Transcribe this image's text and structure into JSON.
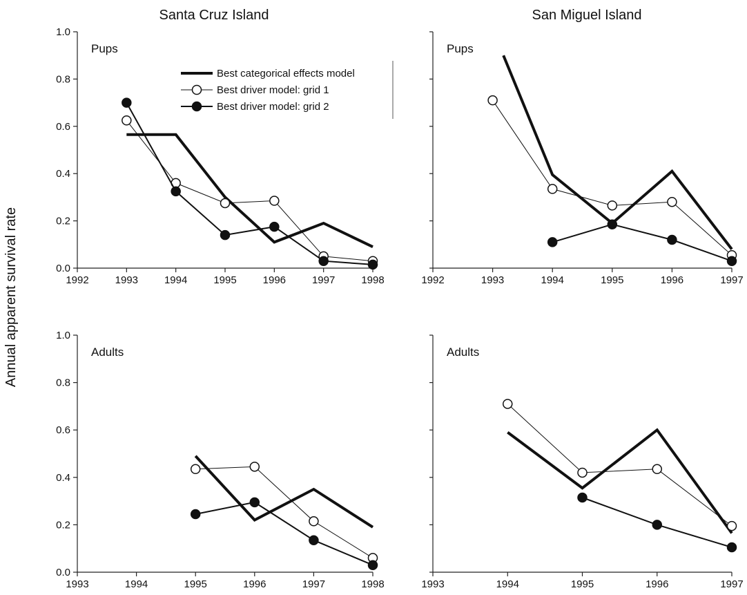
{
  "figure": {
    "ylabel": "Annual apparent survival rate",
    "colors": {
      "ink": "#111111",
      "open_fill": "#ffffff",
      "axis": "#222222"
    }
  },
  "legend": {
    "entries": [
      {
        "label": "Best categorical effects model",
        "style": "thick"
      },
      {
        "label": "Best driver model: grid 1",
        "style": "open"
      },
      {
        "label": "Best driver model: grid 2",
        "style": "filled"
      }
    ]
  },
  "chart_data": [
    {
      "type": "line",
      "column_title": "Santa Cruz Island",
      "panel_label": "Pups",
      "xlim": [
        1992,
        1998
      ],
      "ylim": [
        0,
        1
      ],
      "xticks": [
        "1992",
        "1993",
        "1994",
        "1995",
        "1996",
        "1997",
        "1998"
      ],
      "yticks": [
        "0.0",
        "0.2",
        "0.4",
        "0.6",
        "0.8",
        "1.0"
      ],
      "series": [
        {
          "name": "Best categorical effects model",
          "style": "thick",
          "x": [
            1993,
            1994,
            1995,
            1996,
            1997,
            1998
          ],
          "y": [
            0.565,
            0.565,
            0.3,
            0.11,
            0.19,
            0.09
          ]
        },
        {
          "name": "Best driver model: grid 1",
          "style": "open",
          "x": [
            1993,
            1994,
            1995,
            1996,
            1997,
            1998
          ],
          "y": [
            0.625,
            0.36,
            0.275,
            0.285,
            0.05,
            0.03
          ]
        },
        {
          "name": "Best driver model: grid 2",
          "style": "filled",
          "x": [
            1993,
            1994,
            1995,
            1996,
            1997,
            1998
          ],
          "y": [
            0.7,
            0.325,
            0.14,
            0.175,
            0.03,
            0.015
          ]
        }
      ]
    },
    {
      "type": "line",
      "column_title": "San Miguel Island",
      "panel_label": "Pups",
      "xlim": [
        1992,
        1997
      ],
      "ylim": [
        0,
        1
      ],
      "xticks": [
        "1992",
        "1993",
        "1994",
        "1995",
        "1996",
        "1997"
      ],
      "yticks": [
        "0.0",
        "0.2",
        "0.4",
        "0.6",
        "0.8",
        "1.0"
      ],
      "series": [
        {
          "name": "Best categorical effects model",
          "style": "thick",
          "x": [
            1993.18,
            1994,
            1995,
            1996,
            1997
          ],
          "y": [
            0.9,
            0.395,
            0.19,
            0.41,
            0.08
          ]
        },
        {
          "name": "Best driver model: grid 1",
          "style": "open",
          "x": [
            1993,
            1994,
            1995,
            1996,
            1997
          ],
          "y": [
            0.71,
            0.335,
            0.265,
            0.28,
            0.055
          ]
        },
        {
          "name": "Best driver model: grid 2",
          "style": "filled",
          "x": [
            1994,
            1995,
            1996,
            1997
          ],
          "y": [
            0.11,
            0.185,
            0.12,
            0.03
          ]
        }
      ]
    },
    {
      "type": "line",
      "column_title": "",
      "panel_label": "Adults",
      "xlim": [
        1993,
        1998
      ],
      "ylim": [
        0,
        1
      ],
      "xticks": [
        "1993",
        "1994",
        "1995",
        "1996",
        "1997",
        "1998"
      ],
      "yticks": [
        "0.0",
        "0.2",
        "0.4",
        "0.6",
        "0.8",
        "1.0"
      ],
      "series": [
        {
          "name": "Best categorical effects model",
          "style": "thick",
          "x": [
            1995,
            1996,
            1997,
            1998
          ],
          "y": [
            0.49,
            0.22,
            0.35,
            0.19
          ]
        },
        {
          "name": "Best driver model: grid 1",
          "style": "open",
          "x": [
            1995,
            1996,
            1997,
            1998
          ],
          "y": [
            0.435,
            0.445,
            0.215,
            0.06
          ]
        },
        {
          "name": "Best driver model: grid 2",
          "style": "filled",
          "x": [
            1995,
            1996,
            1997,
            1998
          ],
          "y": [
            0.245,
            0.295,
            0.135,
            0.03
          ]
        }
      ]
    },
    {
      "type": "line",
      "column_title": "",
      "panel_label": "Adults",
      "xlim": [
        1993,
        1997
      ],
      "ylim": [
        0,
        1
      ],
      "xticks": [
        "1993",
        "1994",
        "1995",
        "1996",
        "1997"
      ],
      "yticks": [
        "0.0",
        "0.2",
        "0.4",
        "0.6",
        "0.8",
        "1.0"
      ],
      "series": [
        {
          "name": "Best categorical effects model",
          "style": "thick",
          "x": [
            1994,
            1995,
            1996,
            1997
          ],
          "y": [
            0.59,
            0.355,
            0.6,
            0.165
          ]
        },
        {
          "name": "Best driver model: grid 1",
          "style": "open",
          "x": [
            1994,
            1995,
            1996,
            1997
          ],
          "y": [
            0.71,
            0.42,
            0.435,
            0.195
          ]
        },
        {
          "name": "Best driver model: grid 2",
          "style": "filled",
          "x": [
            1995,
            1996,
            1997
          ],
          "y": [
            0.315,
            0.2,
            0.105
          ]
        }
      ]
    }
  ]
}
